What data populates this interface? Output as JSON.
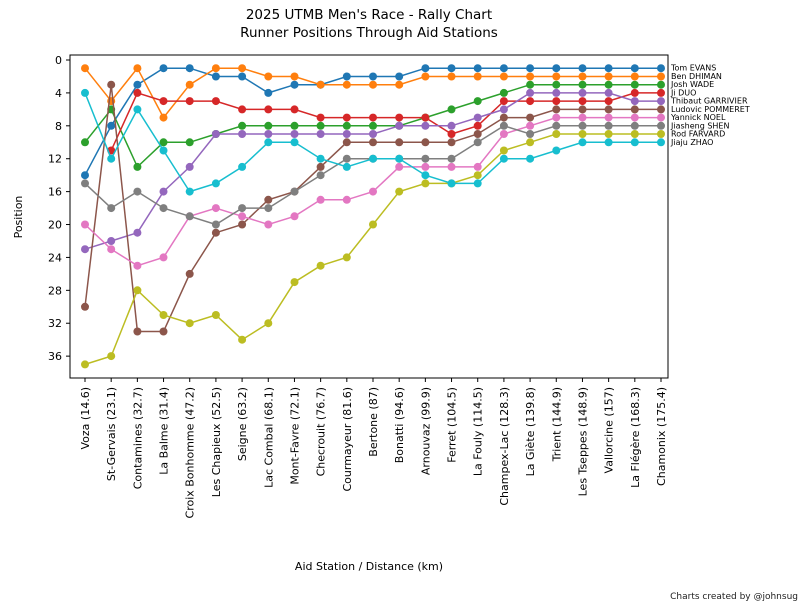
{
  "credit": "Charts created by @johnsug",
  "chart_data": {
    "type": "line",
    "title_line1": "2025 UTMB Men's Race - Rally Chart",
    "title_line2": "Runner Positions Through Aid Stations",
    "xlabel": "Aid Station / Distance (km)",
    "ylabel": "Position",
    "y_inverted": true,
    "ylim": [
      38.6,
      -0.6
    ],
    "yticks": [
      0,
      4,
      8,
      12,
      16,
      20,
      24,
      28,
      32,
      36
    ],
    "grid": false,
    "legend_position": "right-of-plot-at-final-position",
    "categories": [
      "Voza (14.6)",
      "St-Gervais (23.1)",
      "Contamines (32.7)",
      "La Balme (31.4)",
      "Croix Bonhomme (47.2)",
      "Les Chapieux (52.5)",
      "Seigne (63.2)",
      "Lac Combal (68.1)",
      "Mont-Favre (72.1)",
      "Checrouit (76.7)",
      "Courmayeur (81.6)",
      "Bertone (87)",
      "Bonatti (94.6)",
      "Arnouvaz (99.9)",
      "Ferret (104.5)",
      "La Fouly (114.5)",
      "Champex-Lac (128.3)",
      "La Giète (139.8)",
      "Trient (144.9)",
      "Les Tseppes (148.9)",
      "Vallorcine (157)",
      "La Flégère (168.3)",
      "Chamonix (175.4)"
    ],
    "series": [
      {
        "name": "Tom EVANS",
        "color": "#1f77b4",
        "final_rank": 1,
        "values": [
          14,
          8,
          3,
          1,
          1,
          2,
          2,
          4,
          3,
          3,
          2,
          2,
          2,
          1,
          1,
          1,
          1,
          1,
          1,
          1,
          1,
          1,
          1
        ]
      },
      {
        "name": "Ben DHIMAN",
        "color": "#ff7f0e",
        "final_rank": 2,
        "values": [
          1,
          5,
          1,
          7,
          3,
          1,
          1,
          2,
          2,
          3,
          3,
          3,
          3,
          2,
          2,
          2,
          2,
          2,
          2,
          2,
          2,
          2,
          2
        ]
      },
      {
        "name": "Josh WADE",
        "color": "#2ca02c",
        "final_rank": 3,
        "values": [
          10,
          6,
          13,
          10,
          10,
          9,
          8,
          8,
          8,
          8,
          8,
          8,
          8,
          7,
          6,
          5,
          4,
          3,
          3,
          3,
          3,
          3,
          3
        ]
      },
      {
        "name": "Ji DUO",
        "color": "#d62728",
        "final_rank": 4,
        "values": [
          null,
          11,
          4,
          5,
          5,
          5,
          6,
          6,
          6,
          7,
          7,
          7,
          7,
          7,
          9,
          8,
          5,
          5,
          5,
          5,
          5,
          4,
          4
        ]
      },
      {
        "name": "Thibaut GARRIVIER",
        "color": "#9467bd",
        "final_rank": 5,
        "values": [
          23,
          22,
          21,
          16,
          13,
          9,
          9,
          9,
          9,
          9,
          9,
          9,
          8,
          8,
          8,
          7,
          6,
          4,
          4,
          4,
          4,
          5,
          5
        ]
      },
      {
        "name": "Ludovic POMMERET",
        "color": "#8c564b",
        "final_rank": 6,
        "values": [
          30,
          3,
          33,
          33,
          26,
          21,
          20,
          17,
          16,
          13,
          10,
          10,
          10,
          10,
          10,
          9,
          7,
          7,
          6,
          6,
          6,
          6,
          6
        ]
      },
      {
        "name": "Yannick NOEL",
        "color": "#e377c2",
        "final_rank": 7,
        "values": [
          20,
          23,
          25,
          24,
          19,
          18,
          19,
          20,
          19,
          17,
          17,
          16,
          13,
          13,
          13,
          13,
          9,
          8,
          7,
          7,
          7,
          7,
          7
        ]
      },
      {
        "name": "Jiasheng SHEN",
        "color": "#7f7f7f",
        "final_rank": 8,
        "values": [
          15,
          18,
          16,
          18,
          19,
          20,
          18,
          18,
          16,
          14,
          12,
          12,
          12,
          12,
          12,
          10,
          8,
          9,
          8,
          8,
          8,
          8,
          8
        ]
      },
      {
        "name": "Rod FARVARD",
        "color": "#bcbd22",
        "final_rank": 9,
        "values": [
          37,
          36,
          28,
          31,
          32,
          31,
          34,
          32,
          27,
          25,
          24,
          20,
          16,
          15,
          15,
          14,
          11,
          10,
          9,
          9,
          9,
          9,
          9
        ]
      },
      {
        "name": "Jiaju ZHAO",
        "color": "#17becf",
        "final_rank": 10,
        "values": [
          4,
          12,
          6,
          11,
          16,
          15,
          13,
          10,
          10,
          12,
          13,
          12,
          12,
          14,
          15,
          15,
          12,
          12,
          11,
          10,
          10,
          10,
          10
        ]
      }
    ]
  }
}
